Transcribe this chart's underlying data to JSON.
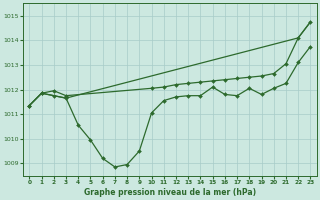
{
  "bg_color": "#cce8e0",
  "grid_color": "#a8ccc8",
  "line_color": "#2d6a2d",
  "marker_color": "#2d6a2d",
  "title": "Graphe pression niveau de la mer (hPa)",
  "xlim": [
    -0.5,
    23.5
  ],
  "ylim": [
    1008.5,
    1015.5
  ],
  "yticks": [
    1009,
    1010,
    1011,
    1012,
    1013,
    1014,
    1015
  ],
  "xticks": [
    0,
    1,
    2,
    3,
    4,
    5,
    6,
    7,
    8,
    9,
    10,
    11,
    12,
    13,
    14,
    15,
    16,
    17,
    18,
    19,
    20,
    21,
    22,
    23
  ],
  "series1_x": [
    0,
    1,
    2,
    3,
    10,
    11,
    12,
    13,
    14,
    15,
    16,
    17,
    18,
    19,
    20,
    21,
    22,
    23
  ],
  "series1_y": [
    1011.35,
    1011.85,
    1011.95,
    1011.75,
    1012.05,
    1012.1,
    1012.2,
    1012.25,
    1012.3,
    1012.35,
    1012.4,
    1012.45,
    1012.5,
    1012.55,
    1012.65,
    1013.05,
    1014.1,
    1014.75
  ],
  "series2_x": [
    0,
    1,
    2,
    3,
    4,
    5,
    6,
    7,
    8,
    9,
    10,
    11,
    12,
    13,
    14,
    15,
    16,
    17,
    18,
    19,
    20,
    21,
    22,
    23
  ],
  "series2_y": [
    1011.35,
    1011.85,
    1011.75,
    1011.65,
    1010.55,
    1009.95,
    1009.2,
    1008.85,
    1008.95,
    1009.5,
    1011.05,
    1011.55,
    1011.7,
    1011.75,
    1011.75,
    1012.1,
    1011.8,
    1011.75,
    1012.05,
    1011.8,
    1012.05,
    1012.25,
    1013.1,
    1013.75
  ],
  "series3_x": [
    0,
    1,
    2,
    3,
    22,
    23
  ],
  "series3_y": [
    1011.35,
    1011.85,
    1011.75,
    1011.65,
    1014.1,
    1014.75
  ]
}
